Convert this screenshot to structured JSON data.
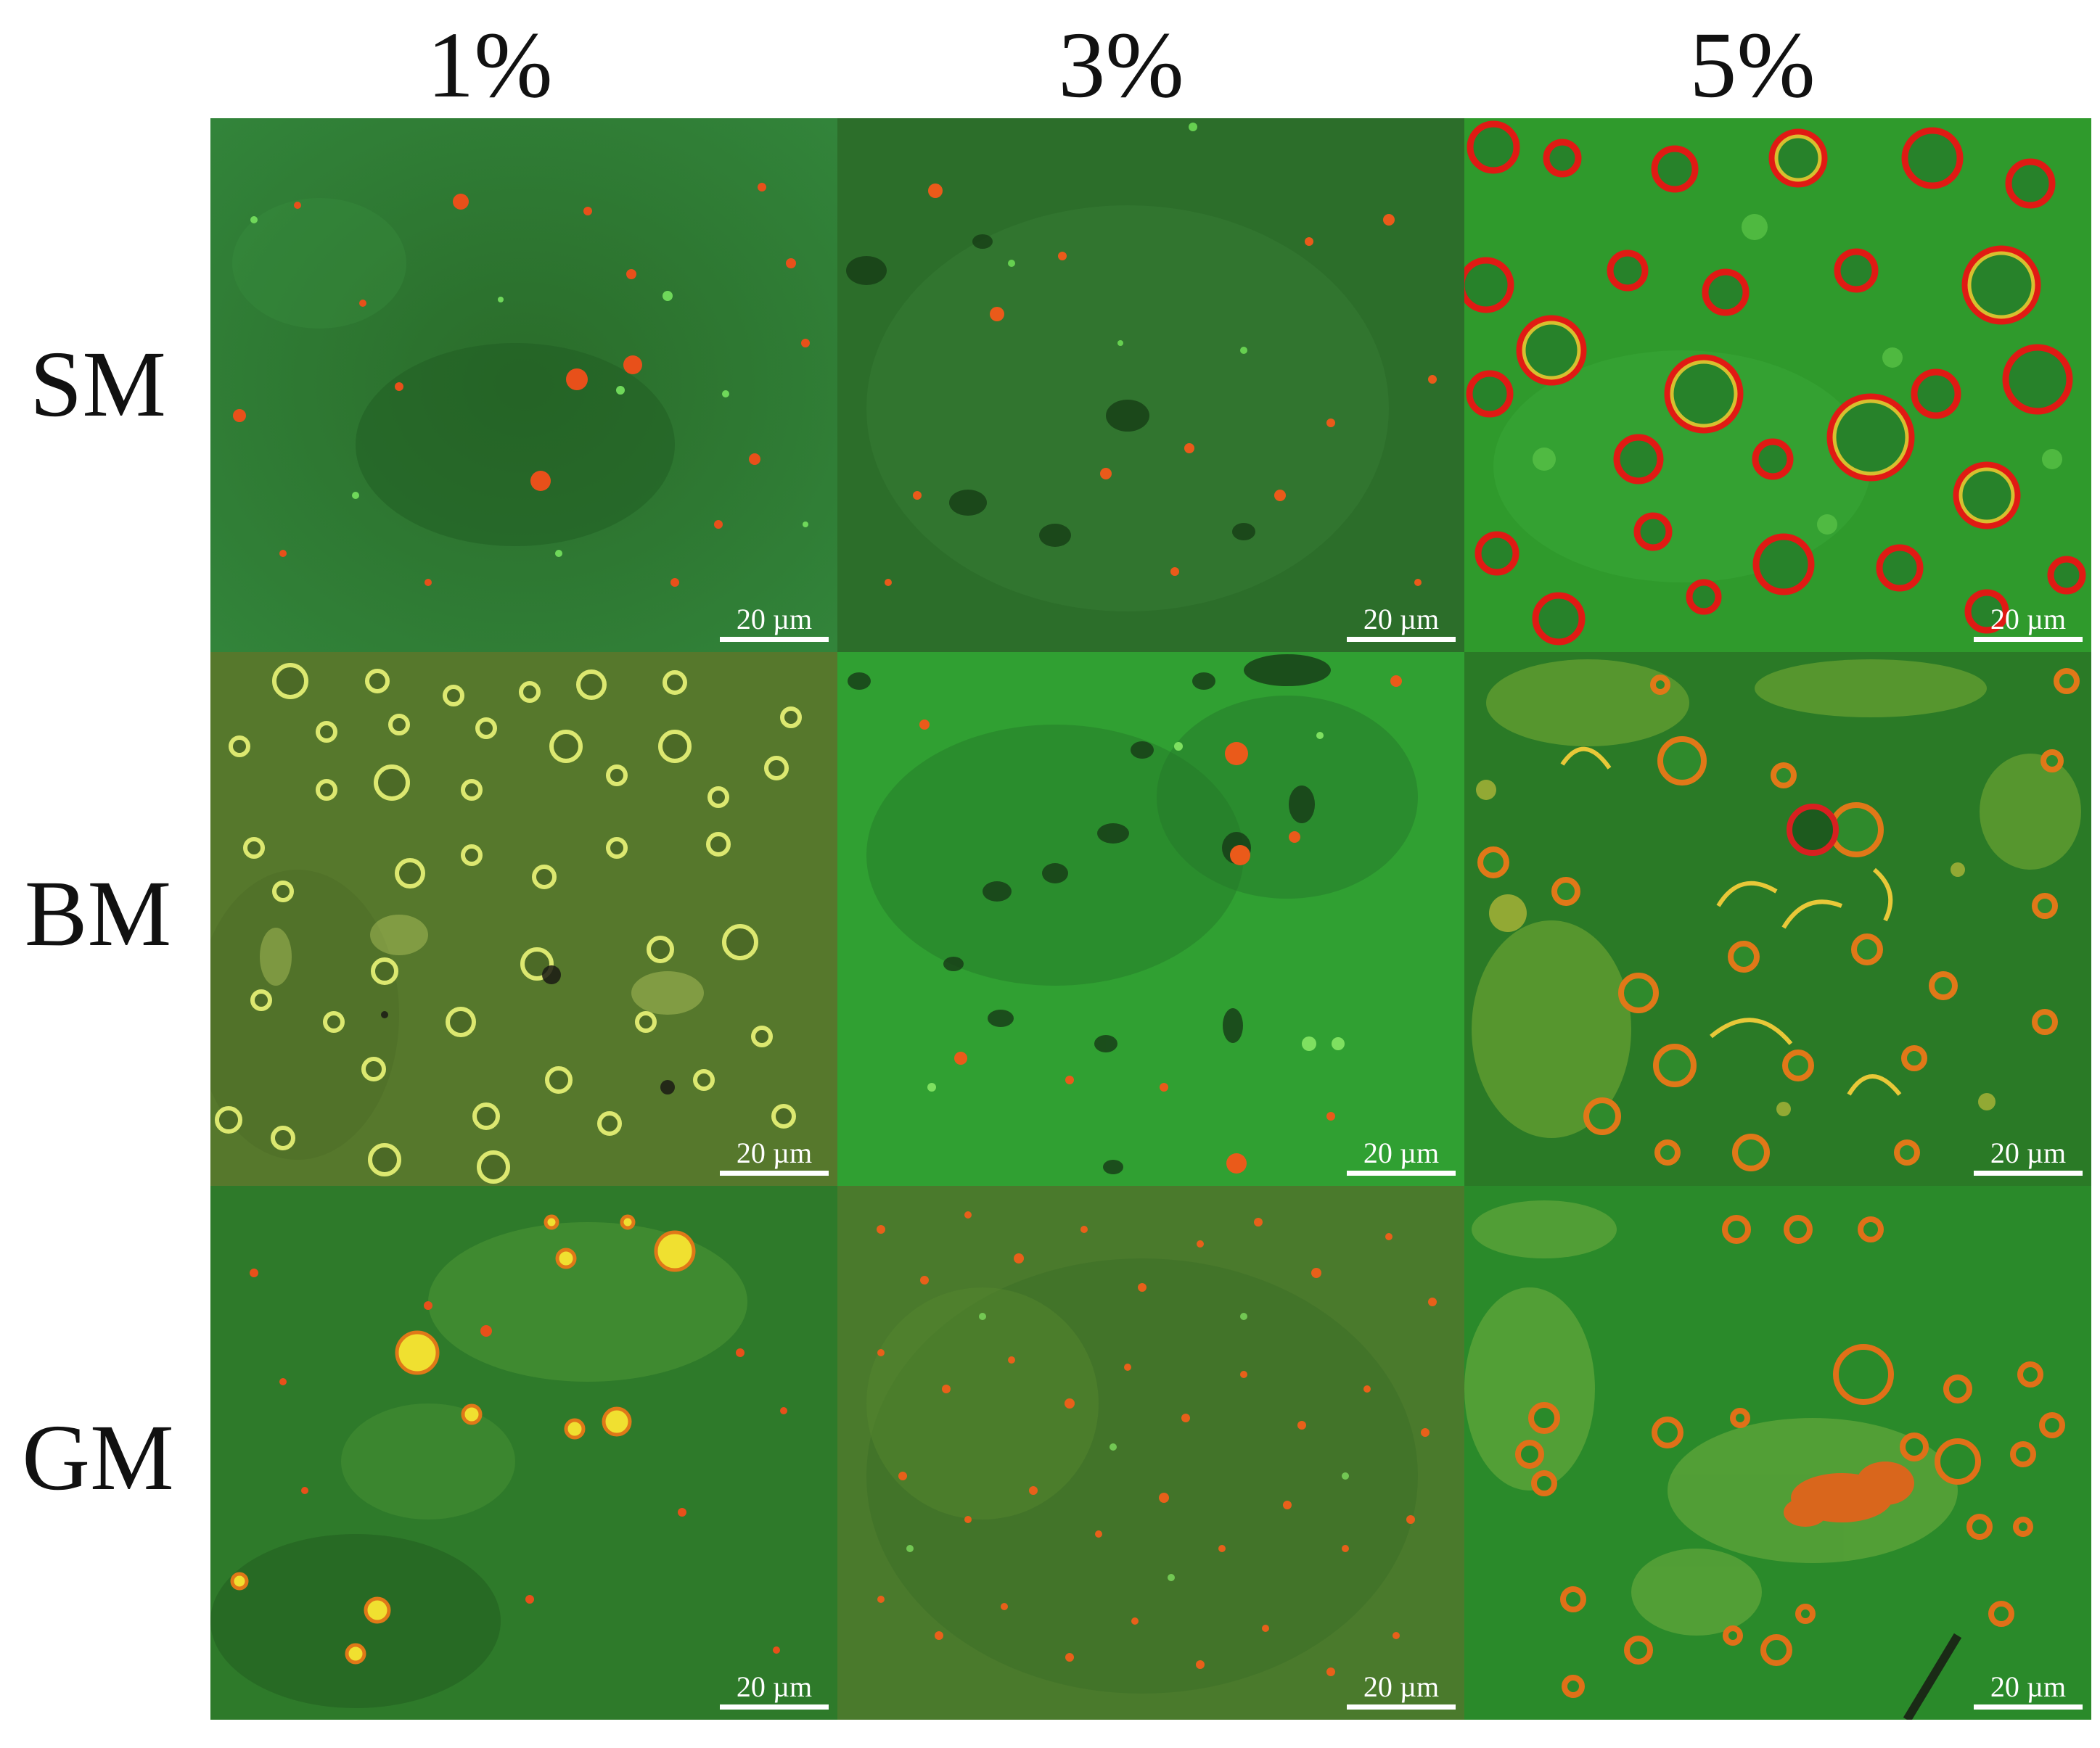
{
  "columns": [
    "1%",
    "3%",
    "5%"
  ],
  "rows": [
    "SM",
    "BM",
    "GM"
  ],
  "scale_bar": "20 µm",
  "panels": [
    {
      "row": "SM",
      "col": "1%",
      "bg": "#2f7a30",
      "dots": "orange-green-small",
      "ring_color": "#d83020"
    },
    {
      "row": "SM",
      "col": "3%",
      "bg": "#2a6e28",
      "dots": "sparse-orange",
      "ring_color": "#e04818"
    },
    {
      "row": "SM",
      "col": "5%",
      "bg": "#2f9a2a",
      "dots": "red-yellow-rings",
      "ring_color": "#e01818"
    },
    {
      "row": "BM",
      "col": "1%",
      "bg": "#5a7a2a",
      "dots": "yellow-rings",
      "ring_color": "#d8e860"
    },
    {
      "row": "BM",
      "col": "3%",
      "bg": "#2f9a2f",
      "dots": "sparse-orange",
      "ring_color": "#e05018"
    },
    {
      "row": "BM",
      "col": "5%",
      "bg": "#2a7a24",
      "dots": "mixed-rings",
      "ring_color": "#e07818"
    },
    {
      "row": "GM",
      "col": "1%",
      "bg": "#2f7a2a",
      "dots": "yellow-droplets",
      "ring_color": "#e8d040"
    },
    {
      "row": "GM",
      "col": "3%",
      "bg": "#4a7a2a",
      "dots": "orange-dense-small",
      "ring_color": "#e06018"
    },
    {
      "row": "GM",
      "col": "5%",
      "bg": "#2a8a2a",
      "dots": "orange-rings",
      "ring_color": "#e07018"
    }
  ]
}
